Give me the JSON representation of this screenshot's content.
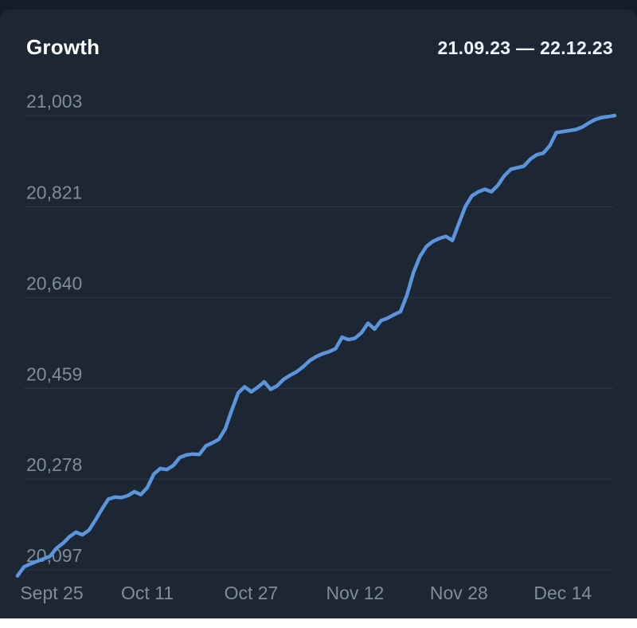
{
  "header": {
    "title": "Growth",
    "date_range": "21.09.23 — 22.12.23"
  },
  "colors": {
    "page_bg": "#141d27",
    "card_bg": "#1c2733",
    "gridline": "#2d3a48",
    "axis_label": "#7f8d99",
    "title_text": "#ffffff",
    "date_range_text": "#eef3f8",
    "line": "#5b96dc"
  },
  "chart_data": {
    "type": "line",
    "title": "Growth",
    "subtitle": "",
    "date_range": "21.09.23 — 22.12.23",
    "grid": "horizontal-only",
    "legend": "none",
    "ylim": [
      20097,
      21003
    ],
    "x_range_days": 92,
    "y_ticks": [
      {
        "label": "21,003",
        "value": 21003
      },
      {
        "label": "20,821",
        "value": 20821
      },
      {
        "label": "20,640",
        "value": 20640
      },
      {
        "label": "20,459",
        "value": 20459
      },
      {
        "label": "20,278",
        "value": 20278
      },
      {
        "label": "20,097",
        "value": 20097
      }
    ],
    "x_ticks": [
      {
        "label": "Sept 25",
        "day": 4
      },
      {
        "label": "Oct 11",
        "day": 20
      },
      {
        "label": "Oct 27",
        "day": 36
      },
      {
        "label": "Nov 12",
        "day": 52
      },
      {
        "label": "Nov 28",
        "day": 68
      },
      {
        "label": "Dec 14",
        "day": 84
      }
    ],
    "series": [
      {
        "name": "growth",
        "sampling": "daily",
        "values": [
          20085,
          20103,
          20109,
          20114,
          20119,
          20124,
          20140,
          20150,
          20163,
          20172,
          20167,
          20176,
          20196,
          20218,
          20238,
          20242,
          20241,
          20245,
          20253,
          20247,
          20261,
          20288,
          20299,
          20297,
          20305,
          20321,
          20326,
          20328,
          20327,
          20344,
          20350,
          20357,
          20378,
          20415,
          20450,
          20462,
          20452,
          20461,
          20472,
          20457,
          20464,
          20477,
          20485,
          20492,
          20502,
          20514,
          20522,
          20528,
          20532,
          20538,
          20561,
          20556,
          20559,
          20570,
          20589,
          20577,
          20594,
          20599,
          20606,
          20612,
          20645,
          20690,
          20722,
          20742,
          20752,
          20758,
          20762,
          20754,
          20788,
          20822,
          20843,
          20851,
          20856,
          20851,
          20864,
          20883,
          20896,
          20899,
          20902,
          20916,
          20925,
          20928,
          20943,
          20969,
          20971,
          20973,
          20975,
          20980,
          20988,
          20995,
          20999,
          21001,
          21003
        ]
      }
    ]
  }
}
